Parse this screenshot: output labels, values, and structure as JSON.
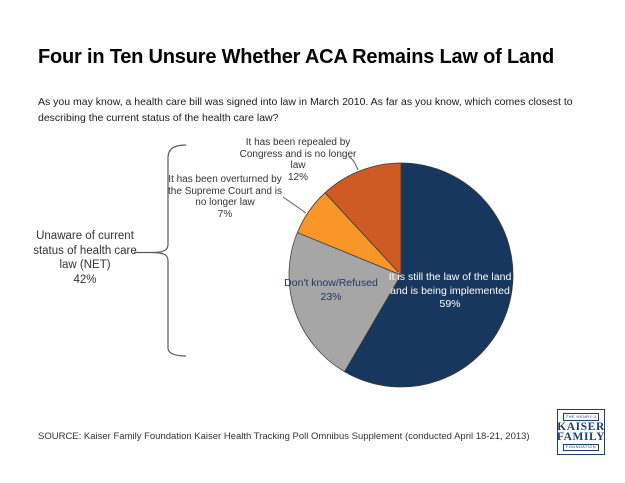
{
  "page": {
    "title": "Four in Ten Unsure Whether ACA Remains Law of Land",
    "question": "As you may know, a health care bill was signed into law in March 2010. As far as you know, which comes closest to describing the current status of the health care law?",
    "source": "SOURCE: Kaiser Family Foundation Kaiser Health Tracking Poll Omnibus Supplement (conducted April 18-21, 2013)"
  },
  "logo": {
    "line1": "THE HENRY J",
    "line2": "KAISER",
    "line3": "FAMILY",
    "line4": "FOUNDATION",
    "color": "#1C3F6E"
  },
  "chart_data": {
    "type": "pie",
    "title": "Four in Ten Unsure Whether ACA Remains Law of Land",
    "start_angle_deg": 0,
    "direction": "clockwise",
    "slices": [
      {
        "id": "still-law",
        "label": "It is still the law of the land and is being implemented",
        "value": 59,
        "pct": "59%",
        "color": "#17375E",
        "label_color": "#FFFFFF",
        "label_lines": [
          "It is still the law of the land",
          "and is being implemented",
          "59%"
        ]
      },
      {
        "id": "dont-know",
        "label": "Don't know/Refused",
        "value": 23,
        "pct": "23%",
        "color": "#A6A6A6",
        "label_color": "#1F3864",
        "label_lines": [
          "Don't know/Refused",
          "23%"
        ]
      },
      {
        "id": "overturned",
        "label": "It has been overturned by the Supreme Court and is no longer law",
        "value": 7,
        "pct": "7%",
        "color": "#F89728",
        "label_color": "#333333",
        "label_lines": [
          "It has been overturned by",
          "the Supreme Court and is",
          "no longer law",
          "7%"
        ]
      },
      {
        "id": "repealed",
        "label": "It has been repealed by Congress and is no longer law",
        "value": 12,
        "pct": "12%",
        "color": "#CE5B24",
        "label_color": "#333333",
        "label_lines": [
          "It has been repealed by",
          "Congress and is no longer",
          "law",
          "12%"
        ]
      }
    ],
    "net": {
      "label": "Unaware of current status of health care law (NET)",
      "value": 42,
      "pct": "42%",
      "label_lines": [
        "Unaware of current",
        "status of health care",
        "law (NET)",
        "42%"
      ]
    }
  }
}
